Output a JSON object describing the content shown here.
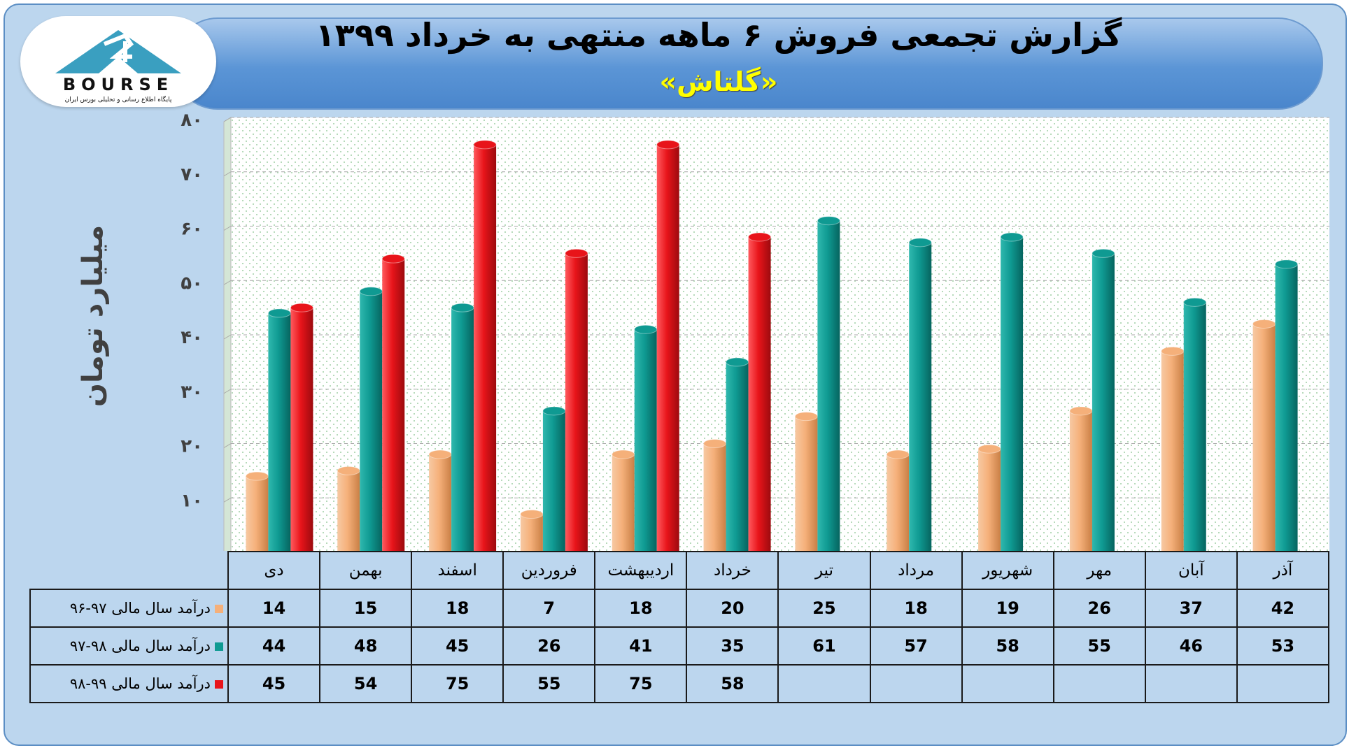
{
  "header": {
    "title": "گزارش تجمعی فروش ۶ ماهه منتهی به خرداد ۱۳۹۹",
    "subtitle": "«گلتاش»"
  },
  "logo": {
    "text": "BOURSE",
    "tagline": "پایگاه اطلاع رسانی و تحلیلی بورس ایران",
    "icon": "24-bourse-logo",
    "color": "#3a9fc0"
  },
  "chart_data": {
    "type": "bar",
    "ylabel": "میلیارد تومان",
    "ylim": [
      0,
      80
    ],
    "yticks": [
      "۱۰",
      "۲۰",
      "۳۰",
      "۴۰",
      "۵۰",
      "۶۰",
      "۷۰",
      "۸۰"
    ],
    "grid": true,
    "categories": [
      "دی",
      "بهمن",
      "اسفند",
      "فروردین",
      "اردیبهشت",
      "خرداد",
      "تیر",
      "مرداد",
      "شهریور",
      "مهر",
      "آبان",
      "آذر"
    ],
    "series": [
      {
        "name": "درآمد سال مالی ۹۷-۹۶",
        "color": "#f5b07a",
        "values": [
          14,
          15,
          18,
          7,
          18,
          20,
          25,
          18,
          19,
          26,
          37,
          42
        ]
      },
      {
        "name": "درآمد سال مالی ۹۸-۹۷",
        "color": "#0f9a92",
        "values": [
          44,
          48,
          45,
          26,
          41,
          35,
          61,
          57,
          58,
          55,
          46,
          53
        ]
      },
      {
        "name": "درآمد سال مالی ۹۹-۹۸",
        "color": "#e8141a",
        "values": [
          45,
          54,
          75,
          55,
          75,
          58,
          null,
          null,
          null,
          null,
          null,
          null
        ]
      }
    ]
  }
}
